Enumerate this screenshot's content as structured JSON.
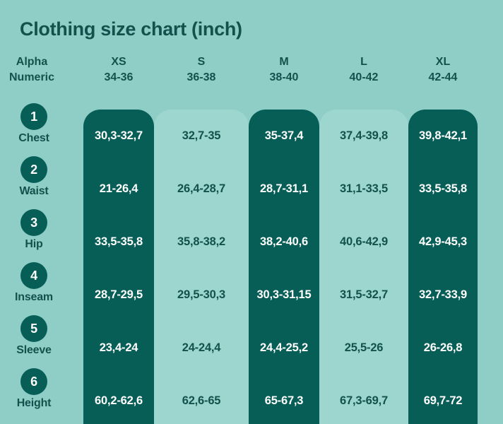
{
  "title": "Clothing size chart (inch)",
  "colors": {
    "background": "#8FCEC7",
    "band_light": "#9CD6CF",
    "band_dark": "#065E57",
    "text_dark": "#13524C",
    "text_on_dark": "#FFFFFF"
  },
  "header": {
    "label_column": {
      "line1": "Alpha",
      "line2": "Numeric"
    },
    "columns": [
      {
        "alpha": "XS",
        "numeric": "34-36"
      },
      {
        "alpha": "S",
        "numeric": "36-38"
      },
      {
        "alpha": "M",
        "numeric": "38-40"
      },
      {
        "alpha": "L",
        "numeric": "40-42"
      },
      {
        "alpha": "XL",
        "numeric": "42-44"
      }
    ]
  },
  "rows": [
    {
      "number": "1",
      "label": "Chest",
      "values": [
        "30,3-32,7",
        "32,7-35",
        "35-37,4",
        "37,4-39,8",
        "39,8-42,1"
      ]
    },
    {
      "number": "2",
      "label": "Waist",
      "values": [
        "21-26,4",
        "26,4-28,7",
        "28,7-31,1",
        "31,1-33,5",
        "33,5-35,8"
      ]
    },
    {
      "number": "3",
      "label": "Hip",
      "values": [
        "33,5-35,8",
        "35,8-38,2",
        "38,2-40,6",
        "40,6-42,9",
        "42,9-45,3"
      ]
    },
    {
      "number": "4",
      "label": "Inseam",
      "values": [
        "28,7-29,5",
        "29,5-30,3",
        "30,3-31,15",
        "31,5-32,7",
        "32,7-33,9"
      ]
    },
    {
      "number": "5",
      "label": "Sleeve",
      "values": [
        "23,4-24",
        "24-24,4",
        "24,4-25,2",
        "25,5-26",
        "26-26,8"
      ]
    },
    {
      "number": "6",
      "label": "Height",
      "values": [
        "60,2-62,6",
        "62,6-65",
        "65-67,3",
        "67,3-69,7",
        "69,7-72"
      ]
    }
  ],
  "chart_data": {
    "type": "table",
    "title": "Clothing size chart (inch)",
    "unit": "inch",
    "columns": [
      "Alpha Numeric",
      "XS 34-36",
      "S 36-38",
      "M 38-40",
      "L 40-42",
      "XL 42-44"
    ],
    "rows": [
      [
        "1 Chest",
        "30,3-32,7",
        "32,7-35",
        "35-37,4",
        "37,4-39,8",
        "39,8-42,1"
      ],
      [
        "2 Waist",
        "21-26,4",
        "26,4-28,7",
        "28,7-31,1",
        "31,1-33,5",
        "33,5-35,8"
      ],
      [
        "3 Hip",
        "33,5-35,8",
        "35,8-38,2",
        "38,2-40,6",
        "40,6-42,9",
        "42,9-45,3"
      ],
      [
        "4 Inseam",
        "28,7-29,5",
        "29,5-30,3",
        "30,3-31,15",
        "31,5-32,7",
        "32,7-33,9"
      ],
      [
        "5 Sleeve",
        "23,4-24",
        "24-24,4",
        "24,4-25,2",
        "25,5-26",
        "26-26,8"
      ],
      [
        "6 Height",
        "60,2-62,6",
        "62,6-65",
        "65-67,3",
        "67,3-69,7",
        "69,7-72"
      ]
    ]
  }
}
